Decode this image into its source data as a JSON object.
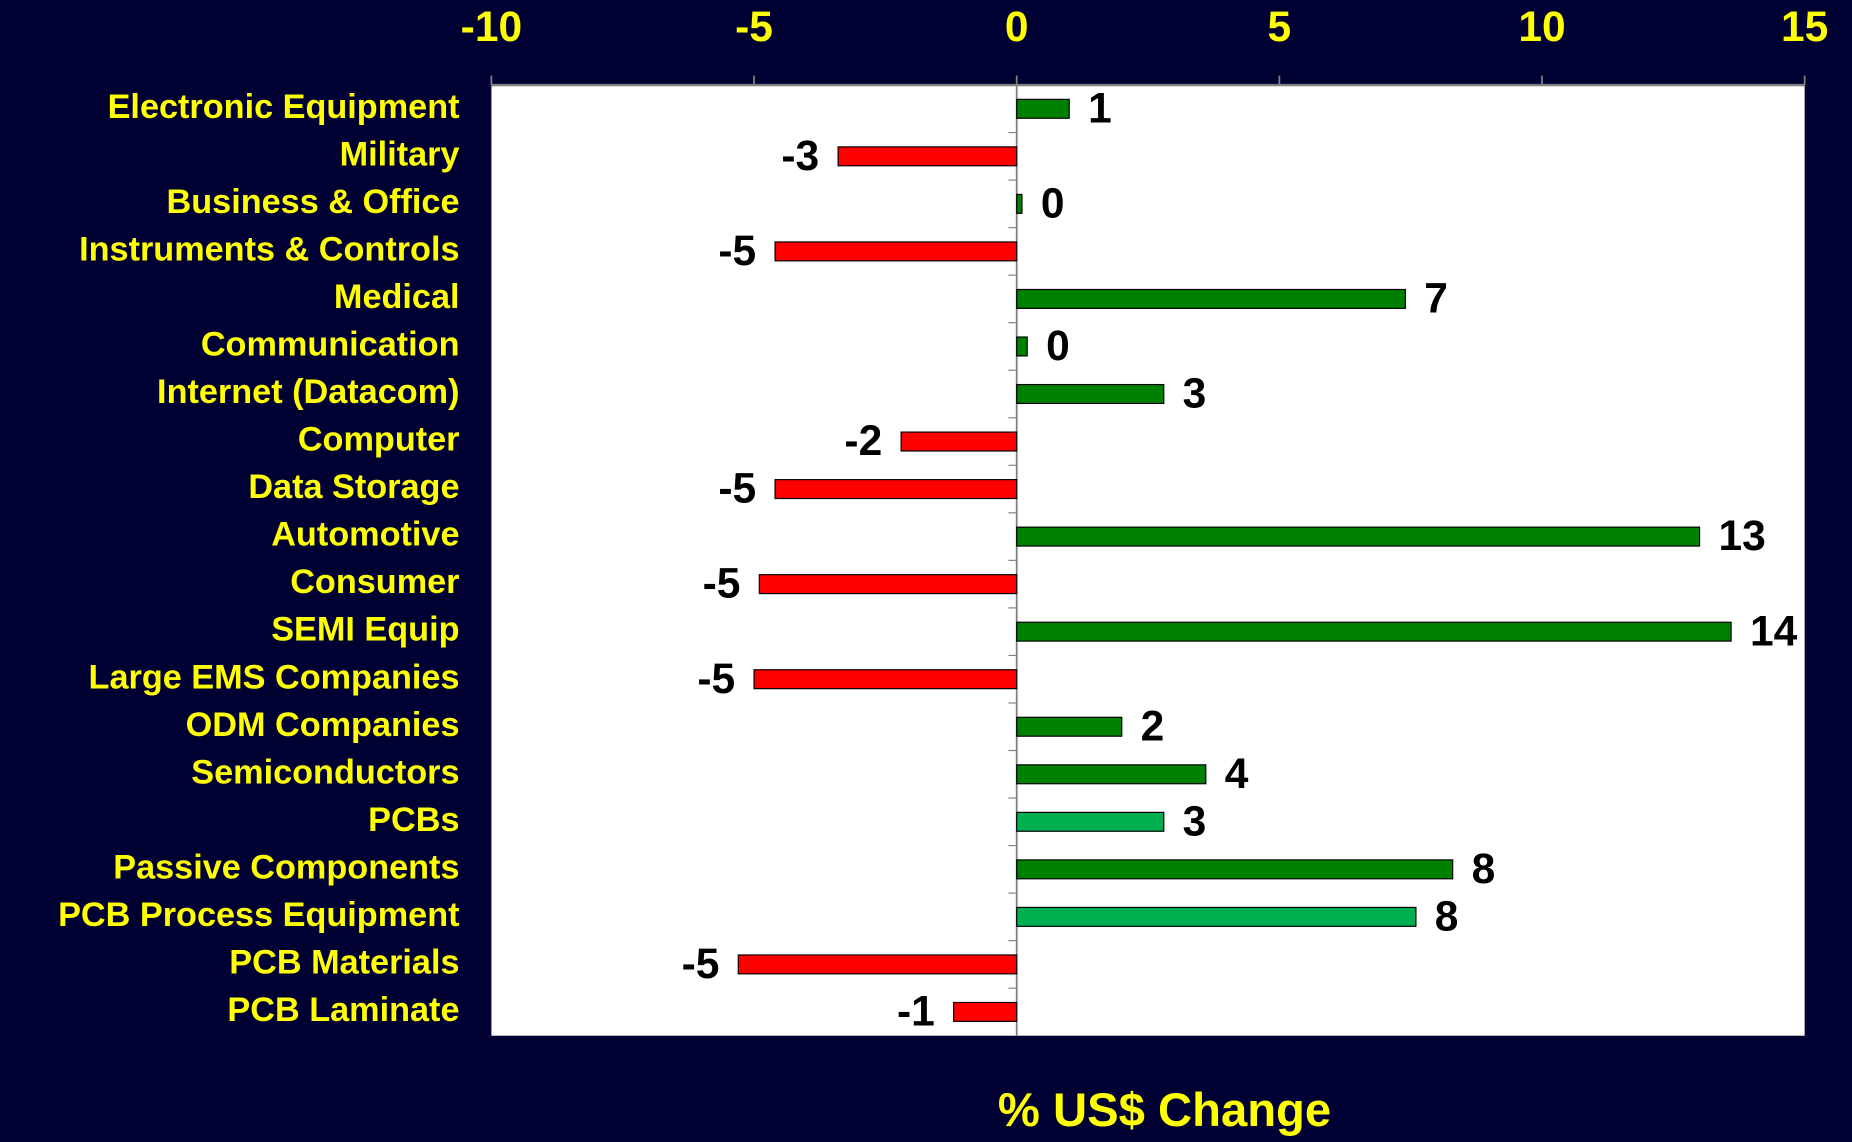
{
  "chart_data": {
    "type": "bar",
    "orientation": "horizontal",
    "x_label": "% US$ Change",
    "categories": [
      "Electronic Equipment",
      "Military",
      "Business & Office",
      "Instruments & Controls",
      "Medical",
      "Communication",
      "Internet (Datacom)",
      "Computer",
      "Data Storage",
      "Automotive",
      "Consumer",
      "SEMI Equip",
      "Large EMS Companies",
      "ODM Companies",
      "Semiconductors",
      "PCBs",
      "Passive Components",
      "PCB Process Equipment",
      "PCB Materials",
      "PCB Laminate"
    ],
    "values": [
      1.0,
      -3.4,
      0.1,
      -4.6,
      7.4,
      0.2,
      2.8,
      -2.2,
      -4.6,
      13.0,
      -4.9,
      13.6,
      -5.0,
      2.0,
      3.6,
      2.8,
      8.3,
      7.6,
      -5.3,
      -1.2
    ],
    "value_labels": [
      "1",
      "-3",
      "0",
      "-5",
      "7",
      "0",
      "3",
      "-2",
      "-5",
      "13",
      "-5",
      "14",
      "-5",
      "2",
      "4",
      "3",
      "8",
      "8",
      "-5",
      "-1"
    ],
    "colors": [
      "#008000",
      "#ff0000",
      "#008000",
      "#ff0000",
      "#008000",
      "#008000",
      "#008000",
      "#ff0000",
      "#ff0000",
      "#008000",
      "#ff0000",
      "#008000",
      "#ff0000",
      "#008000",
      "#008000",
      "#00b050",
      "#008000",
      "#00b050",
      "#ff0000",
      "#ff0000"
    ],
    "xlim": [
      -10,
      15
    ],
    "xticks": [
      -10,
      -5,
      0,
      5,
      10,
      15
    ],
    "grid": false
  }
}
